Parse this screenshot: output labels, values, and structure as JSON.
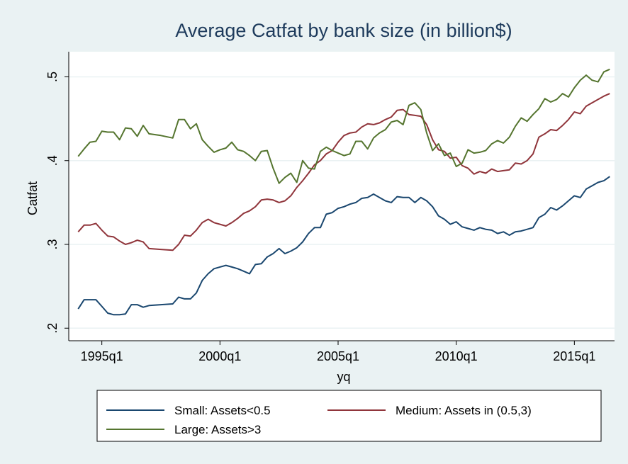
{
  "chart_data": {
    "type": "line",
    "title": "Average Catfat by bank size (in billion$)",
    "xlabel": "yq",
    "ylabel": "Catfat",
    "x_ticks": [
      "1995q1",
      "2000q1",
      "2005q1",
      "2010q1",
      "2015q1"
    ],
    "y_ticks": [
      ".2",
      ".3",
      ".4",
      ".5"
    ],
    "y_tick_values": [
      0.2,
      0.3,
      0.4,
      0.5
    ],
    "x_range": [
      1993.6,
      2016.7
    ],
    "ylim": [
      0.185,
      0.53
    ],
    "grid": true,
    "legend_position": "bottom",
    "series": [
      {
        "name": "Small: Assets<0.5",
        "color": "#1a476f",
        "points": [
          [
            1994.0,
            0.223
          ],
          [
            1994.25,
            0.234
          ],
          [
            1994.5,
            0.234
          ],
          [
            1994.75,
            0.234
          ],
          [
            1995.0,
            0.226
          ],
          [
            1995.25,
            0.218
          ],
          [
            1995.5,
            0.216
          ],
          [
            1995.75,
            0.216
          ],
          [
            1996.0,
            0.217
          ],
          [
            1996.25,
            0.228
          ],
          [
            1996.5,
            0.228
          ],
          [
            1996.75,
            0.225
          ],
          [
            1997.0,
            0.227
          ],
          [
            1997.5,
            0.228
          ],
          [
            1998.0,
            0.229
          ],
          [
            1998.25,
            0.237
          ],
          [
            1998.5,
            0.235
          ],
          [
            1998.75,
            0.235
          ],
          [
            1999.0,
            0.242
          ],
          [
            1999.25,
            0.257
          ],
          [
            1999.5,
            0.265
          ],
          [
            1999.75,
            0.271
          ],
          [
            2000.0,
            0.273
          ],
          [
            2000.25,
            0.275
          ],
          [
            2000.5,
            0.273
          ],
          [
            2000.75,
            0.271
          ],
          [
            2001.0,
            0.268
          ],
          [
            2001.25,
            0.265
          ],
          [
            2001.5,
            0.276
          ],
          [
            2001.75,
            0.277
          ],
          [
            2002.0,
            0.285
          ],
          [
            2002.25,
            0.289
          ],
          [
            2002.5,
            0.295
          ],
          [
            2002.75,
            0.289
          ],
          [
            2003.0,
            0.292
          ],
          [
            2003.25,
            0.296
          ],
          [
            2003.5,
            0.303
          ],
          [
            2003.75,
            0.313
          ],
          [
            2004.0,
            0.32
          ],
          [
            2004.25,
            0.32
          ],
          [
            2004.5,
            0.336
          ],
          [
            2004.75,
            0.338
          ],
          [
            2005.0,
            0.343
          ],
          [
            2005.25,
            0.345
          ],
          [
            2005.5,
            0.348
          ],
          [
            2005.75,
            0.35
          ],
          [
            2006.0,
            0.355
          ],
          [
            2006.25,
            0.356
          ],
          [
            2006.5,
            0.36
          ],
          [
            2006.75,
            0.356
          ],
          [
            2007.0,
            0.352
          ],
          [
            2007.25,
            0.35
          ],
          [
            2007.5,
            0.357
          ],
          [
            2007.75,
            0.356
          ],
          [
            2008.0,
            0.356
          ],
          [
            2008.25,
            0.35
          ],
          [
            2008.5,
            0.356
          ],
          [
            2008.75,
            0.352
          ],
          [
            2009.0,
            0.345
          ],
          [
            2009.25,
            0.334
          ],
          [
            2009.5,
            0.33
          ],
          [
            2009.75,
            0.324
          ],
          [
            2010.0,
            0.327
          ],
          [
            2010.25,
            0.321
          ],
          [
            2010.5,
            0.319
          ],
          [
            2010.75,
            0.317
          ],
          [
            2011.0,
            0.32
          ],
          [
            2011.25,
            0.318
          ],
          [
            2011.5,
            0.317
          ],
          [
            2011.75,
            0.313
          ],
          [
            2012.0,
            0.315
          ],
          [
            2012.25,
            0.311
          ],
          [
            2012.5,
            0.315
          ],
          [
            2012.75,
            0.316
          ],
          [
            2013.0,
            0.318
          ],
          [
            2013.25,
            0.32
          ],
          [
            2013.5,
            0.332
          ],
          [
            2013.75,
            0.336
          ],
          [
            2014.0,
            0.344
          ],
          [
            2014.25,
            0.341
          ],
          [
            2014.5,
            0.346
          ],
          [
            2014.75,
            0.352
          ],
          [
            2015.0,
            0.358
          ],
          [
            2015.25,
            0.356
          ],
          [
            2015.5,
            0.366
          ],
          [
            2015.75,
            0.37
          ],
          [
            2016.0,
            0.374
          ],
          [
            2016.25,
            0.376
          ],
          [
            2016.5,
            0.381
          ],
          [
            2016.75,
            0.384
          ],
          [
            2017.0,
            0.392
          ]
        ]
      },
      {
        "name": "Medium: Assets in (0.5,3)",
        "color": "#90353b",
        "points": [
          [
            1994.0,
            0.315
          ],
          [
            1994.25,
            0.323
          ],
          [
            1994.5,
            0.323
          ],
          [
            1994.75,
            0.325
          ],
          [
            1995.0,
            0.317
          ],
          [
            1995.25,
            0.31
          ],
          [
            1995.5,
            0.309
          ],
          [
            1995.75,
            0.304
          ],
          [
            1996.0,
            0.3
          ],
          [
            1996.25,
            0.302
          ],
          [
            1996.5,
            0.305
          ],
          [
            1996.75,
            0.303
          ],
          [
            1997.0,
            0.295
          ],
          [
            1997.5,
            0.294
          ],
          [
            1998.0,
            0.293
          ],
          [
            1998.25,
            0.3
          ],
          [
            1998.5,
            0.311
          ],
          [
            1998.75,
            0.31
          ],
          [
            1999.0,
            0.317
          ],
          [
            1999.25,
            0.326
          ],
          [
            1999.5,
            0.33
          ],
          [
            1999.75,
            0.326
          ],
          [
            2000.0,
            0.324
          ],
          [
            2000.25,
            0.322
          ],
          [
            2000.5,
            0.326
          ],
          [
            2000.75,
            0.331
          ],
          [
            2001.0,
            0.337
          ],
          [
            2001.25,
            0.34
          ],
          [
            2001.5,
            0.345
          ],
          [
            2001.75,
            0.353
          ],
          [
            2002.0,
            0.354
          ],
          [
            2002.25,
            0.353
          ],
          [
            2002.5,
            0.35
          ],
          [
            2002.75,
            0.352
          ],
          [
            2003.0,
            0.358
          ],
          [
            2003.25,
            0.368
          ],
          [
            2003.5,
            0.376
          ],
          [
            2003.75,
            0.385
          ],
          [
            2004.0,
            0.395
          ],
          [
            2004.25,
            0.4
          ],
          [
            2004.5,
            0.408
          ],
          [
            2004.75,
            0.412
          ],
          [
            2005.0,
            0.422
          ],
          [
            2005.25,
            0.43
          ],
          [
            2005.5,
            0.433
          ],
          [
            2005.75,
            0.434
          ],
          [
            2006.0,
            0.44
          ],
          [
            2006.25,
            0.444
          ],
          [
            2006.5,
            0.443
          ],
          [
            2006.75,
            0.445
          ],
          [
            2007.0,
            0.449
          ],
          [
            2007.25,
            0.452
          ],
          [
            2007.5,
            0.46
          ],
          [
            2007.75,
            0.461
          ],
          [
            2008.0,
            0.455
          ],
          [
            2008.25,
            0.454
          ],
          [
            2008.5,
            0.453
          ],
          [
            2008.75,
            0.443
          ],
          [
            2009.0,
            0.425
          ],
          [
            2009.25,
            0.413
          ],
          [
            2009.5,
            0.411
          ],
          [
            2009.75,
            0.403
          ],
          [
            2010.0,
            0.404
          ],
          [
            2010.25,
            0.394
          ],
          [
            2010.5,
            0.391
          ],
          [
            2010.75,
            0.384
          ],
          [
            2011.0,
            0.387
          ],
          [
            2011.25,
            0.385
          ],
          [
            2011.5,
            0.39
          ],
          [
            2011.75,
            0.387
          ],
          [
            2012.0,
            0.388
          ],
          [
            2012.25,
            0.389
          ],
          [
            2012.5,
            0.397
          ],
          [
            2012.75,
            0.396
          ],
          [
            2013.0,
            0.4
          ],
          [
            2013.25,
            0.408
          ],
          [
            2013.5,
            0.428
          ],
          [
            2013.75,
            0.432
          ],
          [
            2014.0,
            0.437
          ],
          [
            2014.25,
            0.436
          ],
          [
            2014.5,
            0.442
          ],
          [
            2014.75,
            0.449
          ],
          [
            2015.0,
            0.458
          ],
          [
            2015.25,
            0.456
          ],
          [
            2015.5,
            0.465
          ],
          [
            2015.75,
            0.469
          ],
          [
            2016.0,
            0.473
          ],
          [
            2016.25,
            0.477
          ],
          [
            2016.5,
            0.48
          ],
          [
            2016.75,
            0.485
          ],
          [
            2017.0,
            0.493
          ]
        ]
      },
      {
        "name": "Large: Assets>3",
        "color": "#55752f",
        "points": [
          [
            1994.0,
            0.405
          ],
          [
            1994.25,
            0.414
          ],
          [
            1994.5,
            0.422
          ],
          [
            1994.75,
            0.423
          ],
          [
            1995.0,
            0.435
          ],
          [
            1995.25,
            0.434
          ],
          [
            1995.5,
            0.434
          ],
          [
            1995.75,
            0.425
          ],
          [
            1996.0,
            0.439
          ],
          [
            1996.25,
            0.438
          ],
          [
            1996.5,
            0.429
          ],
          [
            1996.75,
            0.442
          ],
          [
            1997.0,
            0.432
          ],
          [
            1997.5,
            0.43
          ],
          [
            1998.0,
            0.427
          ],
          [
            1998.25,
            0.449
          ],
          [
            1998.5,
            0.449
          ],
          [
            1998.75,
            0.438
          ],
          [
            1999.0,
            0.444
          ],
          [
            1999.25,
            0.425
          ],
          [
            1999.5,
            0.417
          ],
          [
            1999.75,
            0.41
          ],
          [
            2000.0,
            0.413
          ],
          [
            2000.25,
            0.415
          ],
          [
            2000.5,
            0.422
          ],
          [
            2000.75,
            0.413
          ],
          [
            2001.0,
            0.411
          ],
          [
            2001.25,
            0.406
          ],
          [
            2001.5,
            0.4
          ],
          [
            2001.75,
            0.411
          ],
          [
            2002.0,
            0.412
          ],
          [
            2002.25,
            0.391
          ],
          [
            2002.5,
            0.373
          ],
          [
            2002.75,
            0.38
          ],
          [
            2003.0,
            0.385
          ],
          [
            2003.25,
            0.374
          ],
          [
            2003.5,
            0.4
          ],
          [
            2003.75,
            0.391
          ],
          [
            2004.0,
            0.39
          ],
          [
            2004.25,
            0.411
          ],
          [
            2004.5,
            0.416
          ],
          [
            2004.75,
            0.412
          ],
          [
            2005.0,
            0.409
          ],
          [
            2005.25,
            0.406
          ],
          [
            2005.5,
            0.408
          ],
          [
            2005.75,
            0.423
          ],
          [
            2006.0,
            0.423
          ],
          [
            2006.25,
            0.414
          ],
          [
            2006.5,
            0.427
          ],
          [
            2006.75,
            0.433
          ],
          [
            2007.0,
            0.437
          ],
          [
            2007.25,
            0.446
          ],
          [
            2007.5,
            0.448
          ],
          [
            2007.75,
            0.443
          ],
          [
            2008.0,
            0.466
          ],
          [
            2008.25,
            0.469
          ],
          [
            2008.5,
            0.461
          ],
          [
            2008.75,
            0.433
          ],
          [
            2009.0,
            0.412
          ],
          [
            2009.25,
            0.42
          ],
          [
            2009.5,
            0.406
          ],
          [
            2009.75,
            0.409
          ],
          [
            2010.0,
            0.393
          ],
          [
            2010.25,
            0.397
          ],
          [
            2010.5,
            0.413
          ],
          [
            2010.75,
            0.409
          ],
          [
            2011.0,
            0.41
          ],
          [
            2011.25,
            0.412
          ],
          [
            2011.5,
            0.42
          ],
          [
            2011.75,
            0.424
          ],
          [
            2012.0,
            0.421
          ],
          [
            2012.25,
            0.428
          ],
          [
            2012.5,
            0.441
          ],
          [
            2012.75,
            0.451
          ],
          [
            2013.0,
            0.447
          ],
          [
            2013.25,
            0.455
          ],
          [
            2013.5,
            0.462
          ],
          [
            2013.75,
            0.474
          ],
          [
            2014.0,
            0.47
          ],
          [
            2014.25,
            0.473
          ],
          [
            2014.5,
            0.48
          ],
          [
            2014.75,
            0.476
          ],
          [
            2015.0,
            0.487
          ],
          [
            2015.25,
            0.496
          ],
          [
            2015.5,
            0.502
          ],
          [
            2015.75,
            0.496
          ],
          [
            2016.0,
            0.494
          ],
          [
            2016.25,
            0.506
          ],
          [
            2016.5,
            0.509
          ],
          [
            2016.75,
            0.509
          ],
          [
            2017.0,
            0.508
          ]
        ]
      }
    ]
  }
}
